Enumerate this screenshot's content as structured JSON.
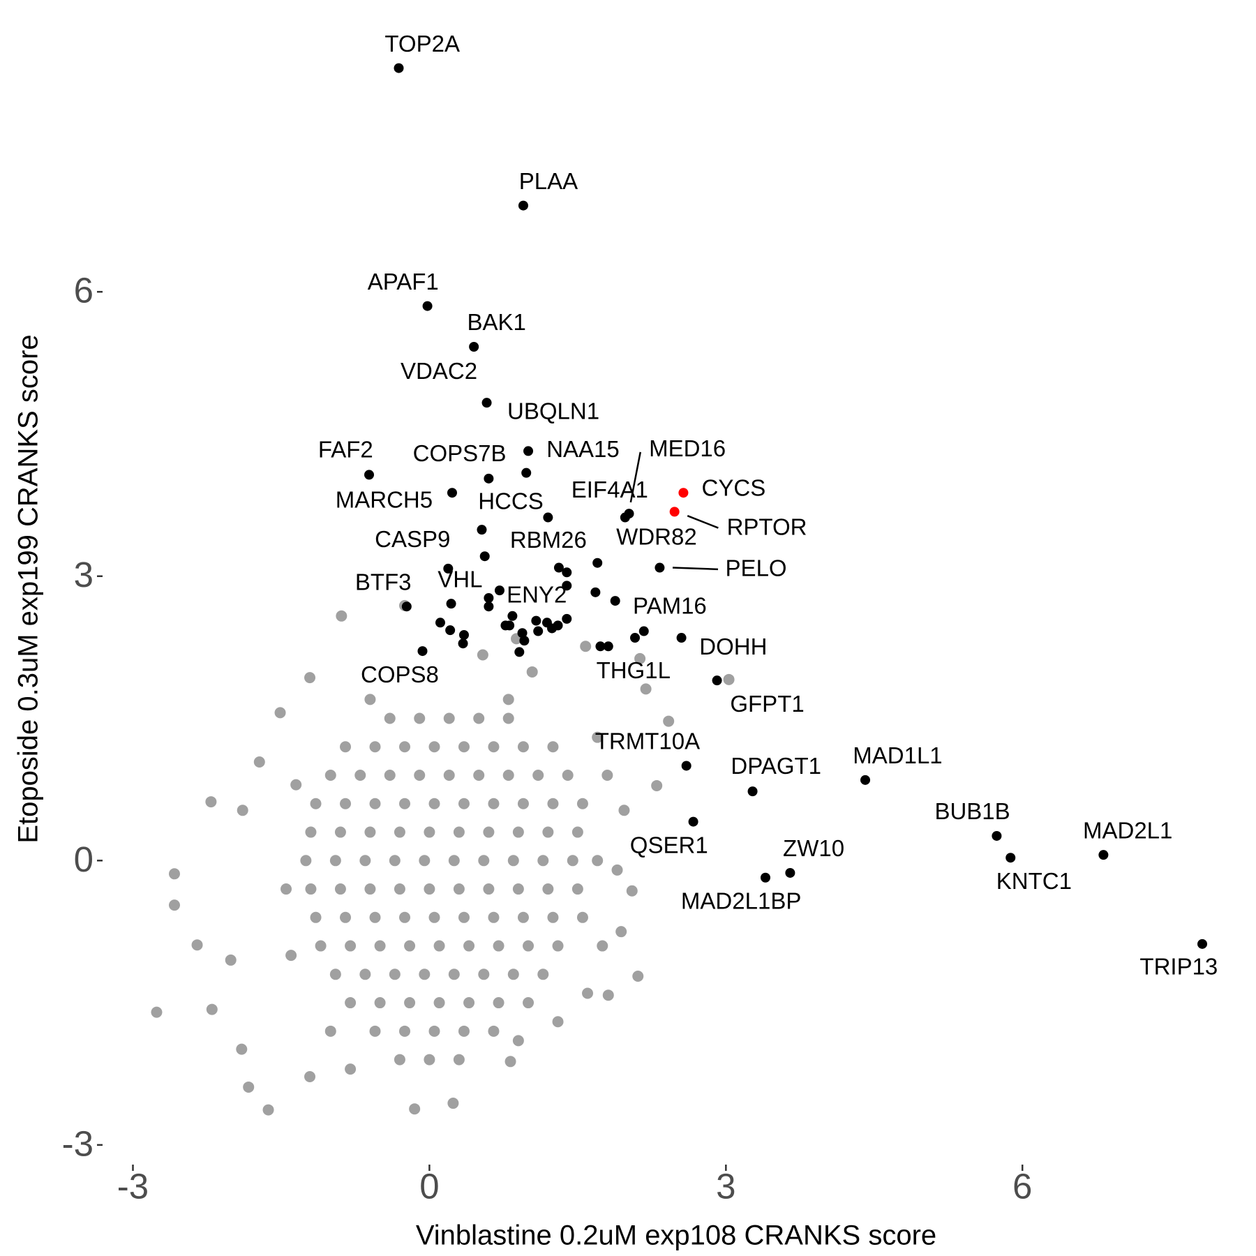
{
  "chart_data": {
    "type": "scatter",
    "xlabel": "Vinblastine 0.2uM exp108 CRANKS score",
    "ylabel": "Etoposide 0.3uM exp199 CRANKS score",
    "xlim": [
      -3.3,
      8.3
    ],
    "ylim": [
      -3.2,
      8.6
    ],
    "xticks": [
      -3,
      0,
      3,
      6
    ],
    "yticks": [
      -3,
      0,
      3,
      6
    ],
    "grid": false,
    "series": [
      {
        "color": "#a0a0a0",
        "x": [
          -0.4,
          -0.1,
          0.2,
          0.5,
          0.8,
          -0.85,
          -0.55,
          -0.25,
          0.05,
          0.35,
          0.65,
          0.95,
          1.25,
          -1.0,
          -0.7,
          -0.4,
          -0.1,
          0.2,
          0.5,
          0.8,
          1.1,
          1.4,
          -1.15,
          -0.85,
          -0.55,
          -0.25,
          0.05,
          0.35,
          0.65,
          0.95,
          1.25,
          1.55,
          -1.2,
          -0.9,
          -0.6,
          -0.3,
          0,
          0.3,
          0.6,
          0.9,
          1.2,
          1.5,
          -1.25,
          -0.95,
          -0.65,
          -0.35,
          -0.05,
          0.25,
          0.55,
          0.85,
          1.15,
          1.45,
          1.7,
          -1.2,
          -0.9,
          -0.6,
          -0.3,
          0,
          0.3,
          0.6,
          0.9,
          1.2,
          1.5,
          -1.15,
          -0.85,
          -0.55,
          -0.25,
          0.05,
          0.35,
          0.65,
          0.95,
          1.25,
          1.55,
          -1.1,
          -0.8,
          -0.5,
          -0.2,
          0.1,
          0.4,
          0.7,
          1.0,
          1.3,
          -0.95,
          -0.65,
          -0.35,
          -0.05,
          0.25,
          0.55,
          0.85,
          1.15,
          -0.8,
          -0.5,
          -0.2,
          0.1,
          0.4,
          0.7,
          1.0,
          -0.55,
          -0.25,
          0.05,
          0.35,
          0.65,
          -0.3,
          0,
          0.3,
          -2.76,
          -2.58,
          -2.58,
          -2.35,
          -2.2,
          -2.21,
          -1.63,
          -1.9,
          -1.83,
          -1.21,
          -0.15,
          0.24,
          -0.89,
          -0.25,
          -1.21,
          0.54,
          0.88,
          1.04,
          1.58,
          2.13,
          2.19,
          3.03,
          2.42,
          2.3,
          2.11,
          1.81,
          1.97,
          2.05,
          1.94,
          -2.01,
          -1.89,
          0.82,
          -1.72,
          -1.51,
          1.7,
          1.8,
          1.9,
          1.75,
          1.6,
          -1.45,
          -1.4,
          -1.35,
          -1.0,
          -0.8,
          0.9,
          1.3,
          0.8,
          -0.6
        ],
        "y": [
          1.5,
          1.5,
          1.5,
          1.5,
          1.5,
          1.2,
          1.2,
          1.2,
          1.2,
          1.2,
          1.2,
          1.2,
          1.2,
          0.9,
          0.9,
          0.9,
          0.9,
          0.9,
          0.9,
          0.9,
          0.9,
          0.9,
          0.6,
          0.6,
          0.6,
          0.6,
          0.6,
          0.6,
          0.6,
          0.6,
          0.6,
          0.6,
          0.3,
          0.3,
          0.3,
          0.3,
          0.3,
          0.3,
          0.3,
          0.3,
          0.3,
          0.3,
          0,
          0,
          0,
          0,
          0,
          0,
          0,
          0,
          0,
          0,
          0,
          -0.3,
          -0.3,
          -0.3,
          -0.3,
          -0.3,
          -0.3,
          -0.3,
          -0.3,
          -0.3,
          -0.3,
          -0.6,
          -0.6,
          -0.6,
          -0.6,
          -0.6,
          -0.6,
          -0.6,
          -0.6,
          -0.6,
          -0.6,
          -0.9,
          -0.9,
          -0.9,
          -0.9,
          -0.9,
          -0.9,
          -0.9,
          -0.9,
          -0.9,
          -1.2,
          -1.2,
          -1.2,
          -1.2,
          -1.2,
          -1.2,
          -1.2,
          -1.2,
          -1.5,
          -1.5,
          -1.5,
          -1.5,
          -1.5,
          -1.5,
          -1.5,
          -1.8,
          -1.8,
          -1.8,
          -1.8,
          -1.8,
          -2.1,
          -2.1,
          -2.1,
          -1.6,
          -0.14,
          -0.47,
          -0.89,
          -1.57,
          0.62,
          -2.63,
          -1.99,
          -2.39,
          -2.28,
          -2.62,
          -2.56,
          2.58,
          2.69,
          1.93,
          2.17,
          2.34,
          1.99,
          2.26,
          2.13,
          1.81,
          1.91,
          1.47,
          0.79,
          -1.22,
          -1.42,
          0.53,
          -0.32,
          -0.75,
          -1.05,
          0.53,
          -2.12,
          1.04,
          1.56,
          1.3,
          0.9,
          -0.1,
          -0.9,
          -1.4,
          -0.3,
          -1.0,
          0.8,
          -1.8,
          -2.2,
          -1.9,
          -1.7,
          1.7,
          1.7
        ]
      },
      {
        "color": "#000000",
        "x": [
          -0.31,
          0.95,
          -0.02,
          0.45,
          0.58,
          1.0,
          0.98,
          0.6,
          -0.61,
          0.23,
          1.2,
          0.19,
          1.31,
          -0.23,
          0.22,
          0.84,
          -0.07,
          2.02,
          1.98,
          1.7,
          2.33,
          2.17,
          2.55,
          1.81,
          2.91,
          2.6,
          3.27,
          4.41,
          2.67,
          3.65,
          3.4,
          5.74,
          5.88,
          6.82,
          7.82,
          0.53,
          0.56,
          1.39,
          1.39,
          0.71,
          0.6,
          0.6,
          1.68,
          1.88,
          0.11,
          0.21,
          0.35,
          0.34,
          0.77,
          0.81,
          0.94,
          0.96,
          1.08,
          1.19,
          1.3,
          1.24,
          1.39,
          1.1,
          1.73,
          2.08,
          0.91
        ],
        "y": [
          8.36,
          6.91,
          5.85,
          5.42,
          4.83,
          4.32,
          4.09,
          4.03,
          4.07,
          3.88,
          3.62,
          3.08,
          3.09,
          2.68,
          2.71,
          2.58,
          2.21,
          3.66,
          3.62,
          3.14,
          3.09,
          2.42,
          2.35,
          2.26,
          1.9,
          1.0,
          0.73,
          0.85,
          0.41,
          -0.13,
          -0.18,
          0.26,
          0.03,
          0.06,
          -0.88,
          3.49,
          3.21,
          3.04,
          2.9,
          2.85,
          2.77,
          2.68,
          2.83,
          2.74,
          2.51,
          2.43,
          2.38,
          2.29,
          2.48,
          2.48,
          2.4,
          2.32,
          2.53,
          2.51,
          2.48,
          2.45,
          2.55,
          2.42,
          2.26,
          2.35,
          2.2
        ],
        "labels": [
          "TOP2A",
          "PLAA",
          "APAF1",
          "BAK1",
          "VDAC2",
          "UBQLN1",
          "NAA15",
          "COPS7B",
          "FAF2",
          "MARCH5",
          "HCCS",
          "CASP9",
          "RBM26",
          "BTF3",
          "VHL",
          "ENY2",
          "COPS8",
          "MED16",
          "EIF4A1",
          "WDR82",
          "PELO",
          "PAM16",
          "DOHH",
          "THG1L",
          "GFPT1",
          "TRMT10A",
          "DPAGT1",
          "MAD1L1",
          "QSER1",
          "ZW10",
          "MAD2L1BP",
          "BUB1B",
          "KNTC1",
          "MAD2L1",
          "TRIP13",
          null,
          null,
          null,
          null,
          null,
          null,
          null,
          null,
          null,
          null,
          null,
          null,
          null,
          null,
          null,
          null,
          null,
          null,
          null,
          null,
          null,
          null,
          null,
          null,
          null,
          null
        ]
      },
      {
        "color": "#ff0000",
        "x": [
          2.57,
          2.48
        ],
        "y": [
          3.88,
          3.68
        ],
        "labels": [
          "CYCS",
          "RPTOR"
        ]
      }
    ]
  }
}
